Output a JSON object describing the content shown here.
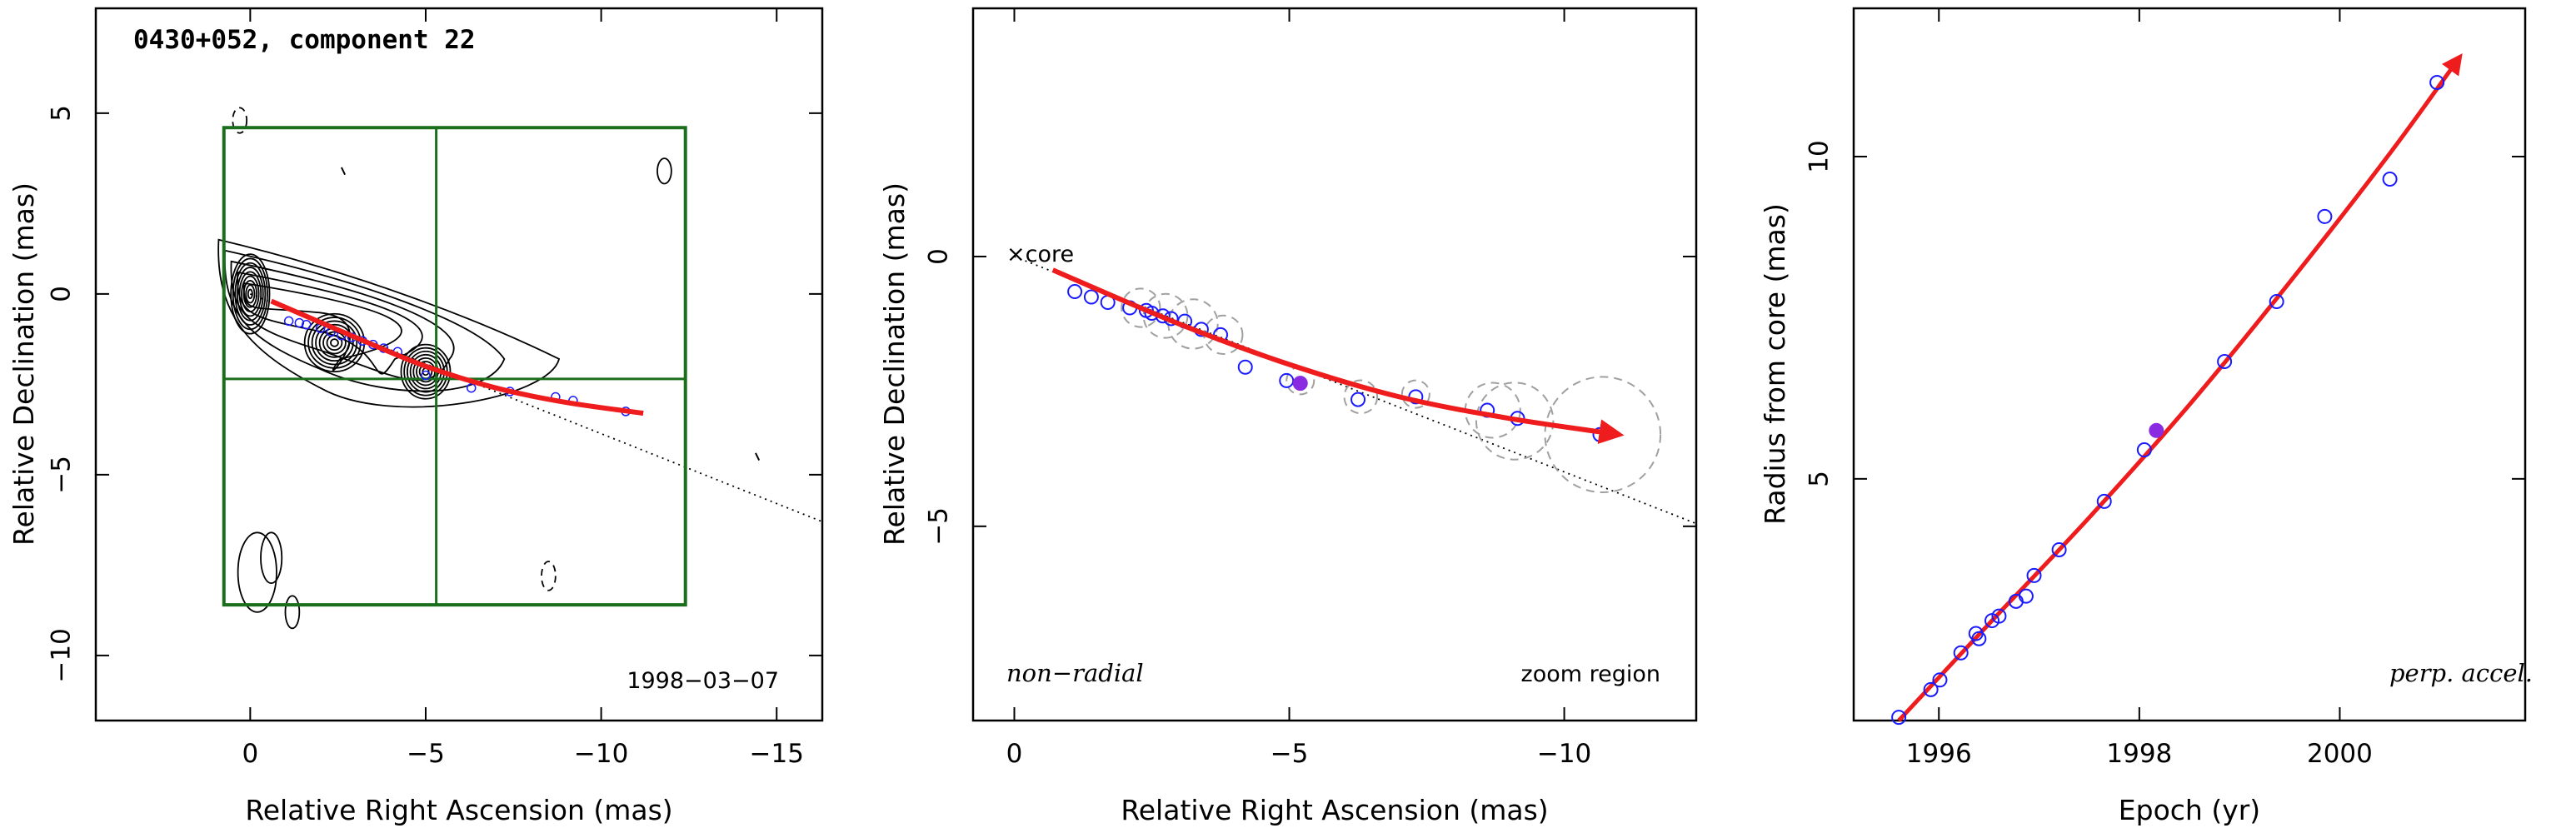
{
  "chart_data": [
    {
      "type": "scatter",
      "title": "0430+052, component 22",
      "xlabel": "Relative Right Ascension (mas)",
      "ylabel": "Relative Declination (mas)",
      "xlim": [
        4.4,
        -16.3
      ],
      "ylim": [
        -11.8,
        7.9
      ],
      "xticks": [
        0,
        -5,
        -10,
        -15
      ],
      "xtick_labels": [
        "0",
        "−5",
        "−10",
        "−15"
      ],
      "yticks": [
        5,
        0,
        -5,
        -10
      ],
      "ytick_labels": [
        "5",
        "0",
        "−5",
        "−10"
      ],
      "annotation": "1998−03−07",
      "zoom_box": {
        "x": [
          0.75,
          -12.4
        ],
        "y": [
          -8.6,
          4.6
        ]
      },
      "zoom_box_dividers": {
        "x": -5.3,
        "y": -2.35
      },
      "color": "#1b6e1b",
      "trajectory_color": "#ee1c1c",
      "trajectory": {
        "x": [
          -0.6,
          -3,
          -5,
          -7,
          -9,
          -11.2
        ],
        "y": [
          -0.2,
          -1.2,
          -2.0,
          -2.6,
          -3.0,
          -3.3
        ]
      },
      "radial_line": {
        "x": [
          0,
          -16.3
        ],
        "y": [
          0,
          -6.3
        ]
      },
      "points": {
        "x": [
          -1.1,
          -1.4,
          -1.6,
          -2.0,
          -2.3,
          -2.6,
          -2.9,
          -3.2,
          -3.5,
          -3.8,
          -4.2,
          -5.0,
          -6.3,
          -7.4,
          -8.7,
          -9.2,
          -10.7
        ],
        "y": [
          -0.75,
          -0.8,
          -0.85,
          -0.95,
          -1.05,
          -1.15,
          -1.2,
          -1.3,
          -1.4,
          -1.5,
          -1.6,
          -2.25,
          -2.6,
          -2.7,
          -2.85,
          -2.95,
          -3.25
        ]
      }
    },
    {
      "type": "scatter",
      "xlabel": "Relative Right Ascension (mas)",
      "ylabel": "Relative Declination (mas)",
      "xlim": [
        0.75,
        -12.4
      ],
      "ylim": [
        -8.6,
        4.6
      ],
      "xticks": [
        0,
        -5,
        -10
      ],
      "xtick_labels": [
        "0",
        "−5",
        "−10"
      ],
      "yticks": [
        0,
        -5
      ],
      "ytick_labels": [
        "0",
        "−5"
      ],
      "core_label": "×core",
      "left_note": "non−radial",
      "right_note": "zoom region",
      "trajectory_color": "#ee1c1c",
      "point_color": "#1a1aff",
      "highlight_color": "#8a2be2",
      "trajectory": {
        "x": [
          -0.7,
          -3,
          -5,
          -7,
          -9,
          -11
        ],
        "y": [
          -0.25,
          -1.25,
          -2.0,
          -2.6,
          -3.0,
          -3.3
        ]
      },
      "radial_line": {
        "x": [
          0,
          -12.4
        ],
        "y": [
          0,
          -4.95
        ]
      },
      "points": {
        "x": [
          -1.1,
          -1.4,
          -1.7,
          -2.1,
          -2.4,
          -2.5,
          -2.7,
          -2.85,
          -3.1,
          -3.4,
          -3.75,
          -4.2,
          -4.95,
          -6.25,
          -7.3,
          -8.6,
          -9.15,
          -10.65
        ],
        "y": [
          -0.65,
          -0.75,
          -0.85,
          -0.95,
          -1.0,
          -1.05,
          -1.1,
          -1.15,
          -1.2,
          -1.35,
          -1.45,
          -2.05,
          -2.3,
          -2.65,
          -2.6,
          -2.85,
          -3.0,
          -3.3
        ]
      },
      "highlight_point": {
        "x": -5.2,
        "y": -2.35
      },
      "uncertainty_circles": [
        {
          "x": -2.3,
          "y": -0.95,
          "r": 0.35
        },
        {
          "x": -2.75,
          "y": -1.1,
          "r": 0.4
        },
        {
          "x": -3.25,
          "y": -1.25,
          "r": 0.45
        },
        {
          "x": -3.8,
          "y": -1.45,
          "r": 0.35
        },
        {
          "x": -5.2,
          "y": -2.3,
          "r": 0.25
        },
        {
          "x": -6.3,
          "y": -2.6,
          "r": 0.3
        },
        {
          "x": -7.3,
          "y": -2.55,
          "r": 0.25
        },
        {
          "x": -8.7,
          "y": -2.85,
          "r": 0.5
        },
        {
          "x": -9.1,
          "y": -3.05,
          "r": 0.7
        },
        {
          "x": -10.7,
          "y": -3.3,
          "r": 1.05
        }
      ]
    },
    {
      "type": "scatter",
      "xlabel": "Epoch (yr)",
      "ylabel": "Radius from core (mas)",
      "xlim": [
        1995.15,
        2001.85
      ],
      "ylim": [
        1.25,
        12.3
      ],
      "xticks": [
        1996,
        1998,
        2000
      ],
      "xtick_labels": [
        "1996",
        "1998",
        "2000"
      ],
      "yticks": [
        5,
        10
      ],
      "ytick_labels": [
        "5",
        "10"
      ],
      "note": "perp. accel.",
      "trajectory_color": "#ee1c1c",
      "point_color": "#1a1aff",
      "highlight_color": "#8a2be2",
      "trajectory": {
        "x": [
          1995.6,
          1996.5,
          1997.5,
          1998.5,
          1999.5,
          2000.5,
          2001.2
        ],
        "y": [
          1.25,
          2.75,
          4.4,
          6.15,
          8.05,
          10.05,
          11.55
        ]
      },
      "points": {
        "x": [
          1995.6,
          1995.92,
          1996.01,
          1996.22,
          1996.37,
          1996.4,
          1996.53,
          1996.6,
          1996.77,
          1996.87,
          1996.95,
          1997.2,
          1997.65,
          1998.05,
          1998.85,
          1999.37,
          1999.85,
          2000.5,
          2000.97
        ],
        "y": [
          1.3,
          1.73,
          1.88,
          2.3,
          2.6,
          2.52,
          2.8,
          2.87,
          3.1,
          3.18,
          3.5,
          3.9,
          4.65,
          5.45,
          6.82,
          7.75,
          9.07,
          9.65,
          11.15
        ]
      },
      "highlight_point": {
        "x": 1998.17,
        "y": 5.75
      }
    }
  ]
}
